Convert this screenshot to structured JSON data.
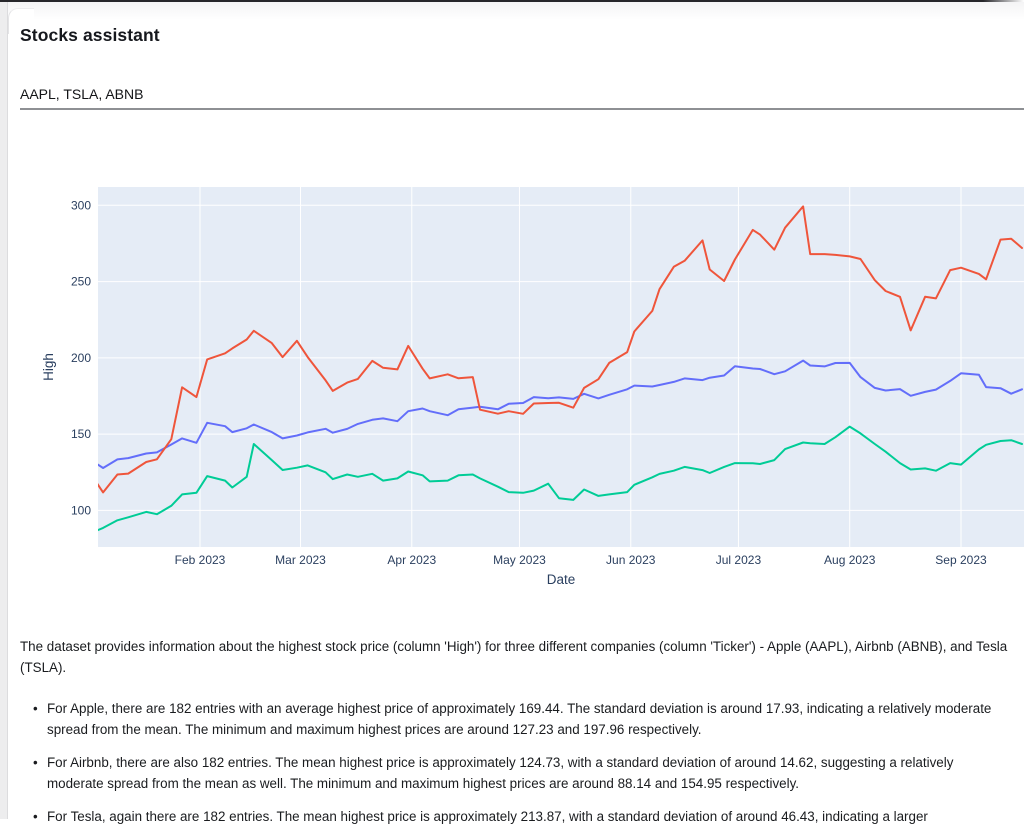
{
  "header": {
    "title": "Stocks assistant",
    "subtitle": "AAPL, TSLA, ABNB"
  },
  "chart_data": {
    "type": "line",
    "title": "",
    "xlabel": "Date",
    "ylabel": "High",
    "plot_bg_color": "#E5ECF6",
    "grid_color": "#FFFFFF",
    "label_color": "#2A3F5F",
    "grid": true,
    "legend": "none",
    "ylim": [
      76,
      312
    ],
    "y_ticks": [
      100,
      150,
      200,
      250,
      300
    ],
    "x_ticks": [
      {
        "date": "2023-02-01",
        "label": "Feb 2023"
      },
      {
        "date": "2023-03-01",
        "label": "Mar 2023"
      },
      {
        "date": "2023-04-01",
        "label": "Apr 2023"
      },
      {
        "date": "2023-05-01",
        "label": "May 2023"
      },
      {
        "date": "2023-06-01",
        "label": "Jun 2023"
      },
      {
        "date": "2023-07-01",
        "label": "Jul 2023"
      },
      {
        "date": "2023-08-01",
        "label": "Aug 2023"
      },
      {
        "date": "2023-09-01",
        "label": "Sep 2023"
      }
    ],
    "x": [
      "2023-01-03",
      "2023-01-05",
      "2023-01-09",
      "2023-01-12",
      "2023-01-17",
      "2023-01-20",
      "2023-01-24",
      "2023-01-27",
      "2023-01-31",
      "2023-02-03",
      "2023-02-08",
      "2023-02-10",
      "2023-02-14",
      "2023-02-16",
      "2023-02-21",
      "2023-02-24",
      "2023-02-28",
      "2023-03-03",
      "2023-03-08",
      "2023-03-10",
      "2023-03-14",
      "2023-03-17",
      "2023-03-21",
      "2023-03-24",
      "2023-03-28",
      "2023-03-31",
      "2023-04-04",
      "2023-04-06",
      "2023-04-11",
      "2023-04-14",
      "2023-04-18",
      "2023-04-20",
      "2023-04-25",
      "2023-04-28",
      "2023-05-02",
      "2023-05-05",
      "2023-05-09",
      "2023-05-12",
      "2023-05-16",
      "2023-05-19",
      "2023-05-23",
      "2023-05-26",
      "2023-05-31",
      "2023-06-02",
      "2023-06-07",
      "2023-06-09",
      "2023-06-13",
      "2023-06-16",
      "2023-06-21",
      "2023-06-23",
      "2023-06-27",
      "2023-06-30",
      "2023-07-05",
      "2023-07-07",
      "2023-07-11",
      "2023-07-14",
      "2023-07-19",
      "2023-07-21",
      "2023-07-25",
      "2023-07-28",
      "2023-08-01",
      "2023-08-04",
      "2023-08-08",
      "2023-08-11",
      "2023-08-15",
      "2023-08-18",
      "2023-08-22",
      "2023-08-25",
      "2023-08-29",
      "2023-09-01",
      "2023-09-06",
      "2023-09-08",
      "2023-09-12",
      "2023-09-15",
      "2023-09-18"
    ],
    "series": [
      {
        "name": "AAPL",
        "color": "#636EFA",
        "values": [
          130.9,
          127.8,
          133.4,
          134.3,
          137.3,
          138.0,
          143.2,
          147.2,
          144.3,
          157.4,
          155.2,
          151.3,
          153.8,
          156.3,
          151.3,
          147.2,
          149.1,
          151.1,
          153.5,
          150.9,
          153.4,
          156.7,
          159.4,
          160.3,
          158.5,
          165.0,
          166.8,
          165.0,
          162.4,
          166.3,
          167.4,
          167.9,
          166.3,
          169.9,
          170.4,
          174.3,
          173.5,
          174.1,
          173.1,
          176.4,
          173.4,
          175.8,
          179.4,
          181.8,
          181.2,
          182.2,
          184.2,
          186.5,
          185.4,
          187.0,
          188.4,
          194.5,
          193.0,
          192.7,
          189.3,
          191.2,
          198.2,
          195.0,
          194.4,
          196.6,
          196.7,
          187.4,
          180.3,
          178.6,
          179.5,
          175.1,
          177.7,
          179.2,
          184.9,
          189.9,
          188.9,
          180.8,
          180.1,
          176.5,
          179.4
        ]
      },
      {
        "name": "ABNB",
        "color": "#00CC96",
        "values": [
          86.5,
          88.5,
          93.5,
          95.5,
          99.0,
          97.5,
          103.0,
          110.5,
          111.5,
          122.5,
          119.5,
          115.0,
          122.0,
          143.5,
          133.0,
          126.5,
          128.0,
          129.5,
          125.0,
          120.5,
          123.5,
          122.0,
          124.0,
          119.5,
          121.0,
          125.5,
          123.0,
          119.0,
          119.5,
          123.0,
          123.5,
          121.0,
          115.5,
          112.0,
          111.5,
          113.0,
          117.5,
          108.0,
          106.9,
          113.7,
          109.5,
          110.5,
          112.0,
          116.8,
          121.7,
          123.9,
          126.0,
          128.5,
          126.4,
          124.5,
          128.5,
          131.0,
          130.9,
          130.4,
          133.0,
          140.2,
          144.5,
          144.0,
          143.5,
          148.0,
          154.95,
          150.5,
          143.5,
          138.5,
          131.0,
          126.8,
          127.5,
          126.0,
          131.0,
          130.0,
          140.0,
          143.0,
          145.5,
          146.0,
          143.5
        ]
      },
      {
        "name": "TSLA",
        "color": "#EF553B",
        "values": [
          118.8,
          111.8,
          123.5,
          124.1,
          131.7,
          133.5,
          146.7,
          180.7,
          174.3,
          199.0,
          203.0,
          206.2,
          212.0,
          217.7,
          209.7,
          200.5,
          211.2,
          200.5,
          185.2,
          178.3,
          183.8,
          186.2,
          198.0,
          193.5,
          192.4,
          207.8,
          192.9,
          186.5,
          189.2,
          186.6,
          187.4,
          166.0,
          163.4,
          165.0,
          163.3,
          170.1,
          170.4,
          170.5,
          167.3,
          180.3,
          186.0,
          196.7,
          203.8,
          217.3,
          230.8,
          245.0,
          259.7,
          263.6,
          277.0,
          257.9,
          250.4,
          264.5,
          283.9,
          280.8,
          270.9,
          285.3,
          299.3,
          268.0,
          268.0,
          267.5,
          266.5,
          264.8,
          250.9,
          243.8,
          240.0,
          218.0,
          240.0,
          239.0,
          257.5,
          259.1,
          255.0,
          251.5,
          277.5,
          278.1,
          272.0
        ]
      }
    ]
  },
  "analysis": {
    "intro": "The dataset provides information about the highest stock price (column 'High') for three different companies (column 'Ticker') - Apple (AAPL), Airbnb (ABNB), and Tesla (TSLA).",
    "bullets": [
      "For Apple, there are 182 entries with an average highest price of approximately 169.44. The standard deviation is around 17.93, indicating a relatively moderate spread from the mean. The minimum and maximum highest prices are around 127.23 and 197.96 respectively.",
      "For Airbnb, there are also 182 entries. The mean highest price is approximately 124.73, with a standard deviation of around 14.62, suggesting a relatively moderate spread from the mean as well. The minimum and maximum highest prices are around 88.14 and 154.95 respectively.",
      "For Tesla, again there are 182 entries. The mean highest price is approximately 213.87, with a standard deviation of around 46.43, indicating a larger"
    ]
  }
}
